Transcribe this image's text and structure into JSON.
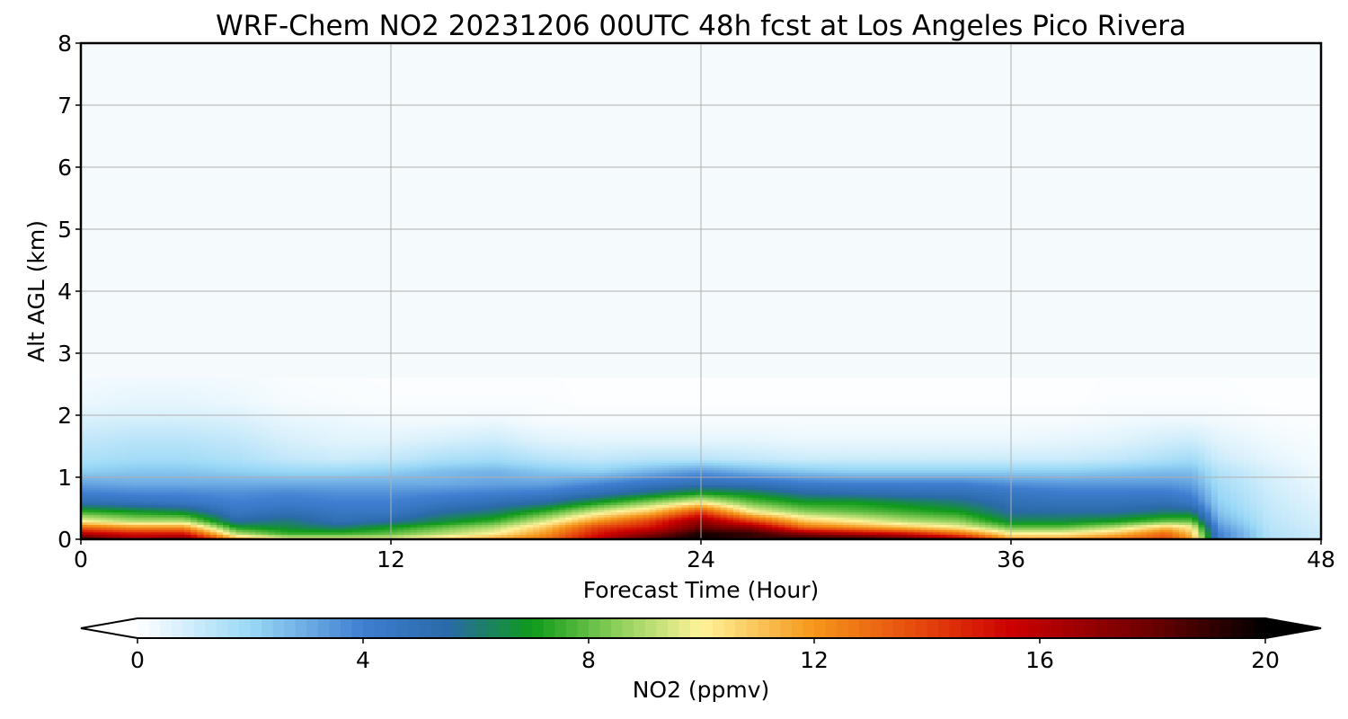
{
  "chart_data": {
    "type": "heatmap",
    "title": "WRF-Chem NO2  20231206 00UTC 48h fcst at Los Angeles Pico Rivera",
    "xlabel": "Forecast Time (Hour)",
    "ylabel": "Alt AGL (km)",
    "xlim": [
      0,
      48
    ],
    "ylim": [
      0,
      8
    ],
    "xticks": [
      0,
      12,
      24,
      36,
      48
    ],
    "yticks": [
      0,
      1,
      2,
      3,
      4,
      5,
      6,
      7,
      8
    ],
    "grid": true,
    "colorbar": {
      "label": "NO2  (ppmv)",
      "min": 0,
      "max": 20,
      "ticks": [
        0,
        4,
        8,
        12,
        16,
        20
      ],
      "extend": "both",
      "color_stops": [
        {
          "value": 0,
          "color": "#ffffff"
        },
        {
          "value": 2,
          "color": "#9ad8f6"
        },
        {
          "value": 4,
          "color": "#3f7ed0"
        },
        {
          "value": 5.5,
          "color": "#2a6aa8"
        },
        {
          "value": 7,
          "color": "#0f9a1a"
        },
        {
          "value": 8.5,
          "color": "#8ccf5a"
        },
        {
          "value": 10,
          "color": "#fff39a"
        },
        {
          "value": 12,
          "color": "#f5961a"
        },
        {
          "value": 14,
          "color": "#e4420c"
        },
        {
          "value": 15.5,
          "color": "#cc0000"
        },
        {
          "value": 18,
          "color": "#6a0000"
        },
        {
          "value": 20,
          "color": "#000000"
        }
      ]
    },
    "field": {
      "x": [
        0,
        2,
        4,
        6,
        8,
        10,
        12,
        14,
        16,
        18,
        20,
        22,
        24,
        26,
        28,
        30,
        32,
        34,
        36,
        38,
        40,
        42,
        43,
        44,
        46,
        48
      ],
      "y": [
        0,
        0.1,
        0.2,
        0.3,
        0.45,
        0.6,
        0.75,
        0.9,
        1.1,
        1.3,
        1.6,
        1.9,
        2.2,
        3,
        8
      ],
      "z": [
        [
          19.5,
          17,
          18,
          12,
          10,
          10,
          10,
          11,
          12,
          13,
          16,
          19,
          20,
          19,
          20,
          20,
          19,
          17,
          12,
          12,
          13,
          14,
          12,
          4,
          1.5,
          1
        ],
        [
          16,
          15,
          15,
          9,
          7.5,
          7.5,
          8,
          9,
          10,
          12,
          15,
          17,
          19.5,
          19,
          17,
          16,
          15,
          13,
          10,
          10,
          11,
          13,
          11,
          4,
          1.5,
          1
        ],
        [
          13,
          12,
          12,
          7,
          6.5,
          6,
          7,
          8,
          9,
          11,
          14,
          15,
          18,
          17,
          13,
          12,
          11,
          10,
          8,
          8,
          9,
          11,
          10,
          3.5,
          1.4,
          0.9
        ],
        [
          10,
          9,
          9,
          5.5,
          6,
          5,
          5.5,
          6.5,
          7.5,
          9.5,
          12,
          14,
          17,
          14,
          11,
          10,
          9,
          8.5,
          6.5,
          6.5,
          7,
          8,
          8,
          3,
          1.3,
          0.8
        ],
        [
          7.5,
          7,
          6.5,
          4.5,
          5,
          4.5,
          4.5,
          5.5,
          6,
          7.5,
          9.5,
          11,
          14,
          10,
          8.5,
          8,
          7.5,
          7,
          5.5,
          5.5,
          5.5,
          6,
          6,
          2.5,
          1.2,
          0.7
        ],
        [
          5,
          4.8,
          4.5,
          4,
          4.2,
          4,
          4,
          4.5,
          5,
          5.5,
          7,
          8.5,
          10,
          8,
          7,
          7,
          6.5,
          6,
          5,
          4.8,
          4.8,
          5,
          4.5,
          2.2,
          1.1,
          0.6
        ],
        [
          4,
          3.8,
          3.8,
          3.6,
          3.8,
          3.6,
          3.6,
          3.8,
          4,
          4.2,
          5,
          6,
          7,
          6.5,
          5.5,
          5.2,
          5,
          5,
          4.5,
          4.2,
          4.2,
          4.2,
          3.8,
          2,
          1,
          0.5
        ],
        [
          3.2,
          3,
          3,
          3,
          3,
          3,
          3,
          3,
          3.2,
          3.2,
          3.8,
          4.5,
          5,
          4.8,
          4.2,
          4,
          4,
          4,
          3.6,
          3.4,
          3.4,
          3.4,
          3.2,
          1.8,
          0.9,
          0.4
        ],
        [
          2.2,
          2.4,
          2.4,
          2.2,
          2,
          2,
          2.2,
          2.6,
          2.8,
          2.4,
          2.2,
          2.8,
          3.4,
          2.8,
          2.4,
          2.2,
          2.2,
          2.2,
          2.2,
          2.2,
          2.4,
          2.6,
          2.6,
          1.5,
          0.8,
          0.3
        ],
        [
          1.6,
          1.8,
          1.8,
          1.6,
          1.2,
          1,
          1.2,
          1.6,
          1.8,
          1.4,
          1.2,
          1.4,
          1.4,
          1.2,
          1,
          1,
          1,
          1,
          1,
          1,
          1.2,
          1.6,
          1.8,
          1,
          0.5,
          0.2
        ],
        [
          1.2,
          1.4,
          1.4,
          1.2,
          0.8,
          0.6,
          0.6,
          0.8,
          1,
          0.6,
          0.5,
          0.5,
          0.5,
          0.5,
          0.4,
          0.4,
          0.4,
          0.4,
          0.4,
          0.5,
          0.6,
          0.9,
          1,
          0.6,
          0.3,
          0.15
        ],
        [
          0.8,
          0.9,
          0.9,
          0.8,
          0.5,
          0.4,
          0.3,
          0.3,
          0.4,
          0.2,
          0.2,
          0.2,
          0.2,
          0.2,
          0.2,
          0.2,
          0.2,
          0.2,
          0.2,
          0.2,
          0.3,
          0.4,
          0.4,
          0.3,
          0.15,
          0.1
        ],
        [
          0.4,
          0.5,
          0.5,
          0.4,
          0.2,
          0.15,
          0.1,
          0.1,
          0.1,
          0.1,
          0.05,
          0.05,
          0.05,
          0.05,
          0.05,
          0.05,
          0.05,
          0.05,
          0.05,
          0.05,
          0.1,
          0.1,
          0.1,
          0.1,
          0.05,
          0.05
        ],
        [
          0.1,
          0.1,
          0.1,
          0.1,
          0.05,
          0.05,
          0.05,
          0.05,
          0.05,
          0.05,
          0.05,
          0.05,
          0.05,
          0.05,
          0.05,
          0.05,
          0.05,
          0.05,
          0.05,
          0.05,
          0.05,
          0.05,
          0.05,
          0.05,
          0.05,
          0.05
        ],
        [
          0.1,
          0.1,
          0.1,
          0.1,
          0.1,
          0.1,
          0.1,
          0.1,
          0.1,
          0.1,
          0.1,
          0.1,
          0.1,
          0.1,
          0.1,
          0.1,
          0.1,
          0.1,
          0.1,
          0.1,
          0.1,
          0.1,
          0.1,
          0.1,
          0.1,
          0.1
        ]
      ]
    }
  }
}
